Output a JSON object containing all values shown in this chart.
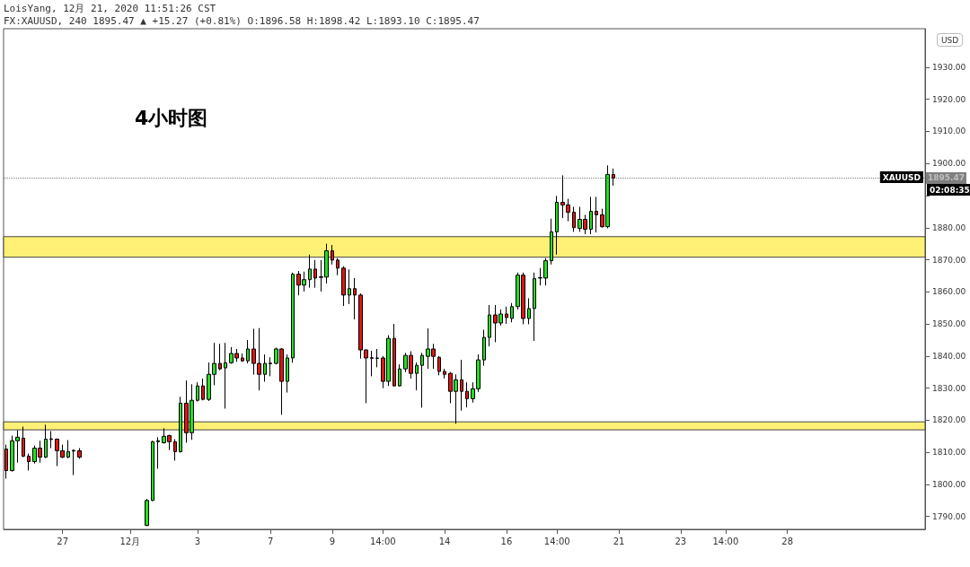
{
  "chart_data": {
    "type": "candlestick",
    "title": "4小时图",
    "annotations": [
      "LoisYang, 12月 21, 2020 11:51:26 CST",
      "FX:XAUUSD, 240 1895.47 ▲ +15.27 (+0.81%) O:1896.58 H:1898.42 L:1893.10 C:1895.47",
      "USD",
      "XAUUSD",
      "02:08:35"
    ],
    "categories": [
      null,
      null,
      null,
      null,
      null,
      null,
      null,
      null,
      null,
      null,
      "27",
      null,
      null,
      null,
      null,
      null,
      null,
      null,
      null,
      null,
      null,
      null,
      "12月",
      null,
      null,
      null,
      null,
      null,
      null,
      null,
      null,
      null,
      null,
      null,
      "3",
      null,
      null,
      null,
      null,
      null,
      null,
      null,
      null,
      null,
      null,
      null,
      null,
      "7",
      null,
      null,
      null,
      null,
      null,
      null,
      null,
      null,
      null,
      null,
      "9",
      null,
      null,
      null,
      null,
      null,
      null,
      null,
      null,
      "14:00",
      null,
      null,
      null,
      null,
      null,
      null,
      null,
      null,
      null,
      null,
      "14",
      null,
      null,
      null,
      null,
      null,
      null,
      null,
      null,
      null,
      null,
      "16",
      null,
      null,
      null,
      null,
      null,
      null,
      null,
      null,
      "14:00",
      null,
      null,
      null,
      null,
      null,
      null,
      null,
      null,
      null,
      null,
      "21",
      null,
      null,
      null,
      null,
      null,
      null,
      null,
      null,
      null,
      null,
      "23",
      null,
      null,
      null,
      null,
      null,
      null,
      null,
      "14:00",
      null,
      null,
      null,
      null,
      null,
      null,
      null,
      null,
      null,
      null,
      "28",
      null,
      null,
      null,
      null,
      null,
      null,
      null,
      null,
      null,
      null,
      null,
      null,
      null,
      null,
      null,
      null,
      null,
      null,
      null,
      null,
      null,
      null,
      null,
      null
    ],
    "ohlc": [
      [
        1811.0,
        1812.4,
        1801.8,
        1804.3
      ],
      [
        1804.3,
        1815.2,
        1804.0,
        1813.6
      ],
      [
        1813.6,
        1816.9,
        1806.8,
        1814.7
      ],
      [
        1814.4,
        1818.0,
        1808.5,
        1808.8
      ],
      [
        1808.8,
        1809.6,
        1804.3,
        1807.1
      ],
      [
        1807.1,
        1812.1,
        1806.5,
        1811.3
      ],
      [
        1811.3,
        1813.6,
        1806.8,
        1808.5
      ],
      [
        1808.5,
        1818.6,
        1808.2,
        1814.1
      ],
      [
        1814.2,
        1816.6,
        1811.3,
        1814.0
      ],
      [
        1814.1,
        1814.3,
        1805.7,
        1810.5
      ],
      [
        1810.5,
        1812.4,
        1808.2,
        1808.5
      ],
      [
        1808.5,
        1813.8,
        1808.2,
        1810.2
      ],
      [
        1810.6,
        1810.9,
        1802.9,
        1810.4
      ],
      [
        1810.5,
        1811.3,
        1808.0,
        1808.5
      ],
      null,
      null,
      null,
      null,
      null,
      null,
      null,
      null,
      null,
      null,
      null,
      [
        1787.2,
        1795.5,
        1787.0,
        1795.0
      ],
      [
        1795.0,
        1813.6,
        1794.8,
        1813.3
      ],
      [
        1813.3,
        1814.7,
        1804.9,
        1813.6
      ],
      [
        1813.0,
        1817.5,
        1812.7,
        1815.0
      ],
      [
        1815.2,
        1815.5,
        1810.7,
        1813.3
      ],
      [
        1813.3,
        1814.1,
        1807.4,
        1810.2
      ],
      [
        1810.2,
        1827.3,
        1809.9,
        1825.3
      ],
      [
        1825.3,
        1832.4,
        1813.0,
        1816.1
      ],
      [
        1816.1,
        1831.2,
        1813.9,
        1826.2
      ],
      [
        1826.2,
        1831.8,
        1825.8,
        1830.7
      ],
      [
        1830.7,
        1833.0,
        1826.2,
        1826.5
      ],
      [
        1826.5,
        1838.0,
        1826.0,
        1834.3
      ],
      [
        1834.3,
        1844.1,
        1830.9,
        1837.7
      ],
      [
        1837.7,
        1843.8,
        1835.6,
        1836.0
      ],
      [
        1836.3,
        1844.1,
        1823.6,
        1837.9
      ],
      [
        1837.9,
        1842.8,
        1837.6,
        1840.8
      ],
      [
        1840.8,
        1842.2,
        1838.2,
        1839.4
      ],
      [
        1839.4,
        1840.8,
        1838.2,
        1838.5
      ],
      [
        1838.5,
        1845.0,
        1837.7,
        1842.2
      ],
      [
        1842.2,
        1848.5,
        1834.2,
        1837.7
      ],
      [
        1837.7,
        1848.7,
        1829.3,
        1834.3
      ],
      [
        1834.3,
        1840.5,
        1832.0,
        1837.7
      ],
      [
        1837.8,
        1839.6,
        1833.7,
        1837.6
      ],
      [
        1837.7,
        1842.6,
        1837.4,
        1842.2
      ],
      [
        1842.2,
        1842.5,
        1821.7,
        1832.1
      ],
      [
        1832.1,
        1840.5,
        1828.6,
        1839.4
      ],
      [
        1839.4,
        1866.0,
        1837.9,
        1865.5
      ],
      [
        1865.5,
        1866.5,
        1858.9,
        1862.1
      ],
      [
        1862.1,
        1866.3,
        1860.1,
        1863.8
      ],
      [
        1863.8,
        1871.6,
        1861.3,
        1867.1
      ],
      [
        1867.1,
        1869.9,
        1861.3,
        1864.3
      ],
      [
        1864.7,
        1869.9,
        1860.1,
        1864.5
      ],
      [
        1864.6,
        1875.0,
        1862.6,
        1872.8
      ],
      [
        1872.8,
        1874.6,
        1868.5,
        1869.9
      ],
      [
        1869.9,
        1870.5,
        1865.2,
        1867.4
      ],
      [
        1867.4,
        1868.0,
        1855.6,
        1859.0
      ],
      [
        1859.0,
        1867.0,
        1856.2,
        1861.0
      ],
      [
        1861.0,
        1864.3,
        1851.4,
        1859.0
      ],
      [
        1859.0,
        1859.5,
        1839.2,
        1841.9
      ],
      [
        1841.9,
        1842.0,
        1825.3,
        1839.4
      ],
      [
        1839.5,
        1841.6,
        1833.7,
        1839.3
      ],
      [
        1839.4,
        1842.2,
        1836.5,
        1839.3
      ],
      [
        1839.4,
        1840.0,
        1830.0,
        1832.1
      ],
      [
        1832.1,
        1846.5,
        1830.7,
        1845.5
      ],
      [
        1845.5,
        1850.0,
        1830.5,
        1830.7
      ],
      [
        1830.7,
        1837.4,
        1830.5,
        1836.0
      ],
      [
        1836.0,
        1841.0,
        1835.0,
        1840.2
      ],
      [
        1840.2,
        1841.5,
        1833.0,
        1834.6
      ],
      [
        1834.6,
        1838.0,
        1829.3,
        1837.1
      ],
      [
        1837.1,
        1841.0,
        1823.9,
        1840.2
      ],
      [
        1839.9,
        1848.6,
        1836.0,
        1842.2
      ],
      [
        1842.2,
        1843.8,
        1836.0,
        1839.9
      ],
      [
        1839.6,
        1840.0,
        1834.0,
        1835.2
      ],
      [
        1835.2,
        1836.0,
        1833.0,
        1834.3
      ],
      [
        1834.6,
        1835.0,
        1825.3,
        1829.0
      ],
      [
        1829.0,
        1834.3,
        1818.9,
        1832.6
      ],
      [
        1832.6,
        1838.8,
        1823.0,
        1829.0
      ],
      [
        1829.0,
        1831.8,
        1824.0,
        1826.7
      ],
      [
        1826.7,
        1831.8,
        1825.5,
        1829.8
      ],
      [
        1829.8,
        1840.5,
        1828.8,
        1838.8
      ],
      [
        1838.8,
        1848.2,
        1837.0,
        1845.8
      ],
      [
        1845.8,
        1855.9,
        1843.0,
        1852.8
      ],
      [
        1852.8,
        1855.9,
        1844.3,
        1850.3
      ],
      [
        1850.3,
        1854.5,
        1849.5,
        1853.1
      ],
      [
        1853.1,
        1855.4,
        1850.0,
        1852.0
      ],
      [
        1851.7,
        1856.5,
        1850.5,
        1855.4
      ],
      [
        1855.4,
        1866.0,
        1854.5,
        1865.2
      ],
      [
        1865.2,
        1866.0,
        1849.9,
        1851.7
      ],
      [
        1851.7,
        1858.0,
        1849.9,
        1854.8
      ],
      [
        1854.8,
        1866.0,
        1844.7,
        1864.1
      ],
      [
        1864.4,
        1867.4,
        1862.0,
        1864.3
      ],
      [
        1864.3,
        1870.5,
        1862.0,
        1869.7
      ],
      [
        1869.7,
        1882.8,
        1868.5,
        1878.7
      ],
      [
        1878.7,
        1889.9,
        1871.6,
        1887.9
      ],
      [
        1887.9,
        1896.3,
        1883.0,
        1887.1
      ],
      [
        1887.1,
        1889.0,
        1882.0,
        1884.8
      ],
      [
        1884.8,
        1886.5,
        1878.7,
        1880.0
      ],
      [
        1879.8,
        1886.5,
        1878.7,
        1882.6
      ],
      [
        1882.6,
        1884.0,
        1878.0,
        1879.5
      ],
      [
        1879.5,
        1889.6,
        1878.0,
        1885.1
      ],
      [
        1885.1,
        1889.6,
        1878.5,
        1884.0
      ],
      [
        1884.0,
        1885.9,
        1880.0,
        1880.3
      ],
      [
        1880.3,
        1899.4,
        1879.8,
        1896.6
      ],
      [
        1896.58,
        1898.42,
        1893.1,
        1895.47
      ],
      null,
      null,
      null,
      null,
      null,
      null,
      null,
      null,
      null,
      null,
      null,
      null,
      null,
      null,
      null,
      null,
      null,
      null,
      null,
      null,
      null,
      null,
      null,
      null,
      null,
      null,
      null,
      null,
      null,
      null,
      null,
      null,
      null,
      null,
      null,
      null,
      null,
      null,
      null,
      null,
      null,
      null,
      null,
      null,
      null,
      null,
      null,
      null,
      null,
      null,
      null,
      null,
      null,
      null,
      null
    ],
    "colors": [
      "#e01515",
      "#22e022",
      "#22e022",
      "#e01515",
      "#e01515",
      "#22e022",
      "#e01515",
      "#22e022",
      "#e01515",
      "#e01515",
      "#e01515",
      "#22e022",
      "#e01515",
      "#e01515",
      null,
      null,
      null,
      null,
      null,
      null,
      null,
      null,
      null,
      null,
      null,
      "#22e022",
      "#22e022",
      "#22e022",
      "#22e022",
      "#e01515",
      "#e01515",
      "#22e022",
      "#e01515",
      "#22e022",
      "#22e022",
      "#e01515",
      "#22e022",
      "#22e022",
      "#e01515",
      "#22e022",
      "#22e022",
      "#e01515",
      "#e01515",
      "#22e022",
      "#e01515",
      "#e01515",
      "#22e022",
      "#e01515",
      "#22e022",
      "#e01515",
      "#22e022",
      "#22e022",
      "#e01515",
      "#22e022",
      "#22e022",
      "#e01515",
      "#e01515",
      "#22e022",
      "#e01515",
      "#e01515",
      "#e01515",
      "#22e022",
      "#e01515",
      "#e01515",
      "#e01515",
      "#e01515",
      "#e01515",
      "#e01515",
      "#22e022",
      "#e01515",
      "#22e022",
      "#22e022",
      "#e01515",
      "#22e022",
      "#22e022",
      "#22e022",
      "#e01515",
      "#e01515",
      "#e01515",
      "#e01515",
      "#22e022",
      "#e01515",
      "#e01515",
      "#22e022",
      "#22e022",
      "#22e022",
      "#22e022",
      "#e01515",
      "#22e022",
      "#e01515",
      "#22e022",
      "#22e022",
      "#e01515",
      "#22e022",
      "#22e022",
      "#e01515",
      "#22e022",
      "#22e022",
      "#22e022",
      "#e01515",
      "#e01515",
      "#e01515",
      "#22e022",
      "#e01515",
      "#22e022",
      "#e01515",
      "#e01515",
      "#22e022",
      "#e01515",
      null,
      null,
      null,
      null,
      null,
      null,
      null,
      null,
      null,
      null,
      null,
      null,
      null,
      null,
      null,
      null,
      null,
      null,
      null,
      null,
      null,
      null,
      null,
      null,
      null,
      null,
      null,
      null,
      null,
      null,
      null,
      null,
      null,
      null,
      null,
      null,
      null,
      null,
      null,
      null,
      null,
      null,
      null,
      null,
      null,
      null,
      null,
      null,
      null,
      null,
      null,
      null,
      null,
      null,
      null
    ],
    "ylim": [
      1786,
      1942
    ],
    "yticks": [
      {
        "value": 1790,
        "label": "1790.00"
      },
      {
        "value": 1800,
        "label": "1800.00"
      },
      {
        "value": 1810,
        "label": "1810.00"
      },
      {
        "value": 1820,
        "label": "1820.00"
      },
      {
        "value": 1830,
        "label": "1830.00"
      },
      {
        "value": 1840,
        "label": "1840.00"
      },
      {
        "value": 1850,
        "label": "1850.00"
      },
      {
        "value": 1860,
        "label": "1860.00"
      },
      {
        "value": 1870,
        "label": "1870.00"
      },
      {
        "value": 1880,
        "label": "1880.00"
      },
      {
        "value": 1890,
        "label": null
      },
      {
        "value": 1900,
        "label": "1900.00"
      },
      {
        "value": 1910,
        "label": "1910.00"
      },
      {
        "value": 1920,
        "label": "1920.00"
      },
      {
        "value": 1930,
        "label": "1930.00"
      }
    ],
    "bands": [
      {
        "axis": "y",
        "from": 1870.8,
        "to": 1877.2,
        "color": "#fff176"
      },
      {
        "axis": "y",
        "from": 1817.0,
        "to": 1819.5,
        "color": "#fff176"
      }
    ],
    "ref_lines": [
      {
        "axis": "y",
        "value": 1895.47,
        "label": "1895.47",
        "color": "#000000",
        "line_style": "dotted"
      }
    ],
    "grid": false
  }
}
